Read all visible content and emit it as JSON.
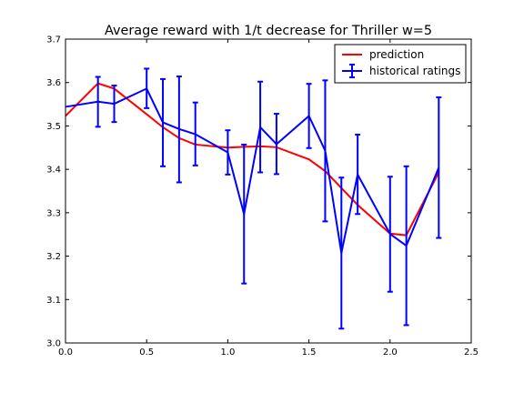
{
  "chart_data": {
    "type": "line",
    "title": "Average reward with 1/t decrease for Thriller w=5",
    "xlabel": "",
    "ylabel": "",
    "xlim": [
      0.0,
      2.5
    ],
    "ylim": [
      3.0,
      3.7
    ],
    "x_ticks": [
      "0.0",
      "0.5",
      "1.0",
      "1.5",
      "2.0",
      "2.5"
    ],
    "y_ticks": [
      "3.0",
      "3.1",
      "3.2",
      "3.3",
      "3.4",
      "3.5",
      "3.6",
      "3.7"
    ],
    "grid": false,
    "legend_position": "top-right",
    "series": [
      {
        "name": "prediction",
        "color": "#ff0000",
        "error_bars": false,
        "x": [
          0.0,
          0.2,
          0.3,
          0.5,
          0.6,
          0.7,
          0.8,
          1.0,
          1.1,
          1.2,
          1.3,
          1.5,
          1.6,
          1.7,
          1.8,
          2.0,
          2.1,
          2.3
        ],
        "y": [
          3.523,
          3.598,
          3.586,
          3.527,
          3.497,
          3.472,
          3.457,
          3.45,
          3.452,
          3.453,
          3.451,
          3.423,
          3.396,
          3.357,
          3.318,
          3.252,
          3.248,
          3.393
        ]
      },
      {
        "name": "historical ratings",
        "color": "#0000ff",
        "error_bars": true,
        "x": [
          0.0,
          0.2,
          0.3,
          0.5,
          0.6,
          0.7,
          0.8,
          1.0,
          1.1,
          1.2,
          1.3,
          1.5,
          1.6,
          1.7,
          1.8,
          2.0,
          2.1,
          2.3
        ],
        "y": [
          3.544,
          3.556,
          3.551,
          3.586,
          3.508,
          3.493,
          3.481,
          3.439,
          3.297,
          3.497,
          3.458,
          3.523,
          3.443,
          3.207,
          3.388,
          3.251,
          3.224,
          3.404
        ],
        "err_low": [
          3.544,
          3.498,
          3.509,
          3.541,
          3.407,
          3.37,
          3.409,
          3.388,
          3.137,
          3.393,
          3.389,
          3.449,
          3.28,
          3.033,
          3.297,
          3.118,
          3.041,
          3.242
        ],
        "err_high": [
          3.544,
          3.613,
          3.593,
          3.632,
          3.608,
          3.614,
          3.554,
          3.49,
          3.457,
          3.602,
          3.528,
          3.597,
          3.605,
          3.381,
          3.48,
          3.383,
          3.407,
          3.566
        ]
      }
    ]
  }
}
